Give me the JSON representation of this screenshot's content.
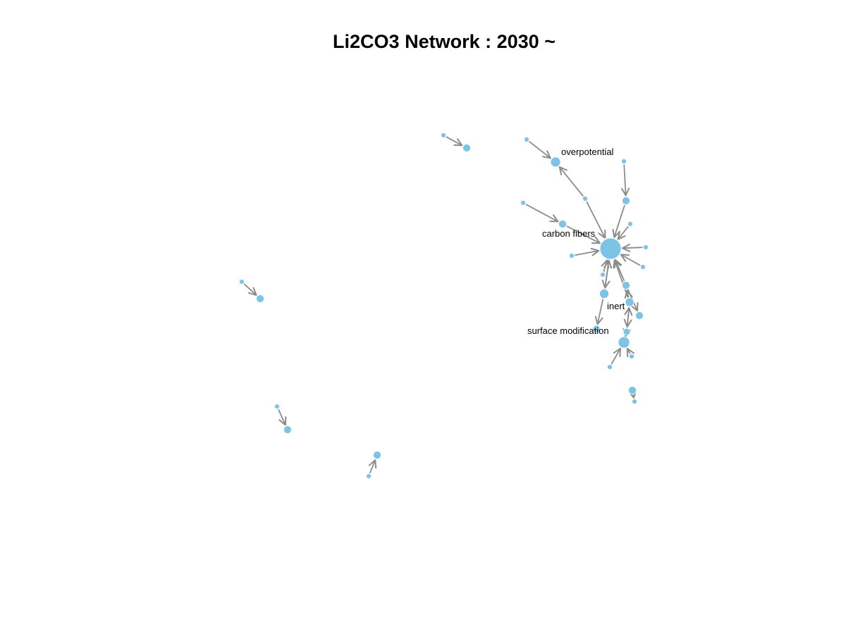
{
  "title": "Li2CO3 Network : 2030 ~",
  "colors": {
    "node": "#7cc3e6",
    "node_stroke": "#ffffff",
    "edge": "#8c8c8c",
    "label": "#000000"
  },
  "labels": {
    "overpotential": "overpotential",
    "carbon_fibers": "carbon fibers",
    "inert": "inert",
    "surface_modification": "surface modification"
  }
}
